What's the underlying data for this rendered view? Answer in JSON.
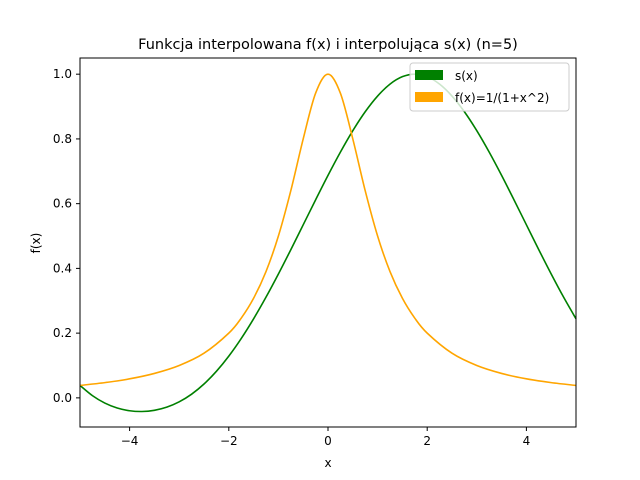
{
  "chart_data": {
    "type": "line",
    "title": "Funkcja interpolowana f(x) i interpolująca s(x) (n=5)",
    "xlabel": "x",
    "ylabel": "f(x)",
    "xlim": [
      -5,
      5
    ],
    "ylim": [
      -0.09,
      1.05
    ],
    "xticks": [
      -4,
      -2,
      0,
      2,
      4
    ],
    "xtick_labels": [
      "−4",
      "−2",
      "0",
      "2",
      "4"
    ],
    "yticks": [
      0.0,
      0.2,
      0.4,
      0.6,
      0.8,
      1.0
    ],
    "ytick_labels": [
      "0.0",
      "0.2",
      "0.4",
      "0.6",
      "0.8",
      "1.0"
    ],
    "grid": false,
    "legend_position": "top-right",
    "series": [
      {
        "name": "s(x)",
        "color": "#008000",
        "x": [
          -5,
          -4.75,
          -4.5,
          -4.25,
          -4,
          -3.75,
          -3.5,
          -3.25,
          -3,
          -2.75,
          -2.5,
          -2.25,
          -2,
          -1.75,
          -1.5,
          -1.25,
          -1,
          -0.75,
          -0.5,
          -0.25,
          0,
          0.25,
          0.5,
          0.75,
          1,
          1.25,
          1.5,
          1.75,
          2,
          2.25,
          2.5,
          2.75,
          3,
          3.25,
          3.5,
          3.75,
          4,
          4.25,
          4.5,
          4.75,
          5
        ],
        "y": [
          0.0385,
          0.0069,
          -0.016,
          -0.0313,
          -0.0398,
          -0.0421,
          -0.0384,
          -0.0286,
          -0.0122,
          0.0114,
          0.0428,
          0.082,
          0.129,
          0.1833,
          0.2443,
          0.3111,
          0.3827,
          0.4577,
          0.5346,
          0.6117,
          0.6873,
          0.7592,
          0.8254,
          0.8839,
          0.9325,
          0.9693,
          0.9923,
          1.0,
          0.9923,
          0.9693,
          0.9325,
          0.8839,
          0.8254,
          0.7592,
          0.6873,
          0.6117,
          0.5346,
          0.4577,
          0.3827,
          0.3111,
          0.2443
        ]
      },
      {
        "name": "f(x)=1/(1+x^2)",
        "color": "#FFA500",
        "x": [
          -5,
          -4.5,
          -4,
          -3.5,
          -3,
          -2.5,
          -2,
          -1.75,
          -1.5,
          -1.25,
          -1,
          -0.75,
          -0.5,
          -0.25,
          0,
          0.25,
          0.5,
          0.75,
          1,
          1.25,
          1.5,
          1.75,
          2,
          2.5,
          3,
          3.5,
          4,
          4.5,
          5
        ],
        "y": [
          0.0385,
          0.0471,
          0.0588,
          0.0755,
          0.1,
          0.1379,
          0.2,
          0.2462,
          0.3077,
          0.3902,
          0.5,
          0.64,
          0.8,
          0.9412,
          1.0,
          0.9412,
          0.8,
          0.64,
          0.5,
          0.3902,
          0.3077,
          0.2462,
          0.2,
          0.1379,
          0.1,
          0.0755,
          0.0588,
          0.0471,
          0.0385
        ]
      }
    ]
  }
}
